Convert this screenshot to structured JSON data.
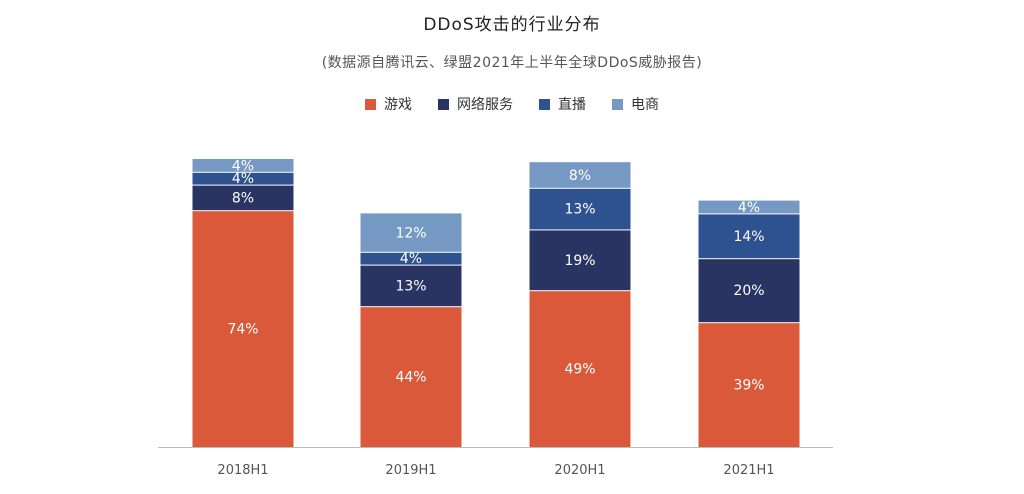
{
  "chart_data": {
    "type": "bar",
    "stacked": true,
    "title": "DDoS攻击的行业分布",
    "subtitle": "(数据源自腾讯云、绿盟2021年上半年全球DDoS威胁报告)",
    "categories": [
      "2018H1",
      "2019H1",
      "2020H1",
      "2021H1"
    ],
    "series": [
      {
        "name": "游戏",
        "color": "#D9593A",
        "values": [
          74,
          44,
          49,
          39
        ]
      },
      {
        "name": "网络服务",
        "color": "#2A3463",
        "values": [
          8,
          13,
          19,
          20
        ]
      },
      {
        "name": "直播",
        "color": "#2E5190",
        "values": [
          4,
          4,
          13,
          14
        ]
      },
      {
        "name": "电商",
        "color": "#7599C2",
        "values": [
          4,
          12,
          8,
          4
        ]
      }
    ],
    "value_suffix": "%",
    "legend_position": "top",
    "grid": false
  }
}
